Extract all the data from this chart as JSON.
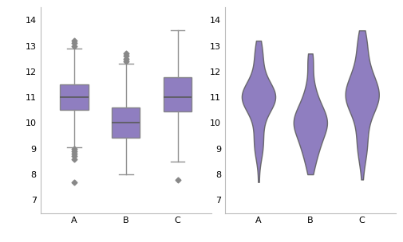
{
  "groups": [
    "A",
    "B",
    "C"
  ],
  "data_A": [
    10.5,
    10.6,
    10.7,
    10.8,
    10.9,
    11.0,
    11.0,
    11.1,
    11.2,
    11.3,
    11.4,
    11.5,
    11.6,
    10.4,
    10.3,
    11.7,
    11.8,
    11.9,
    12.0,
    12.1,
    12.2,
    12.3,
    12.4,
    10.2,
    10.1,
    10.0,
    9.9,
    9.8,
    9.7,
    9.6,
    11.05,
    11.15,
    11.25,
    10.85,
    10.75,
    10.65,
    10.55,
    11.35,
    11.45,
    11.55,
    9.5,
    9.4,
    9.3,
    9.2,
    9.1,
    9.05,
    13.0,
    12.9,
    12.8,
    12.7,
    12.5,
    12.6,
    11.0,
    11.0,
    11.0,
    11.0,
    11.0,
    11.0,
    11.0,
    11.0,
    11.0,
    11.0,
    11.0,
    11.0,
    10.5,
    10.5,
    10.5,
    11.5,
    11.5,
    11.5,
    10.8,
    10.9,
    11.1,
    11.2,
    10.7,
    10.6,
    11.3,
    11.4,
    9.0,
    8.9,
    8.8,
    8.7,
    8.6,
    13.1,
    13.2,
    7.7
  ],
  "data_B": [
    9.7,
    9.8,
    9.9,
    10.0,
    10.1,
    10.2,
    10.3,
    10.4,
    10.5,
    10.6,
    9.6,
    9.5,
    9.4,
    9.3,
    9.2,
    9.1,
    9.0,
    8.9,
    8.8,
    10.7,
    10.8,
    10.9,
    11.0,
    11.1,
    11.2,
    9.85,
    9.95,
    10.05,
    10.15,
    10.25,
    10.35,
    9.75,
    9.65,
    9.55,
    9.45,
    9.35,
    9.25,
    9.15,
    9.05,
    10.45,
    10.55,
    10.65,
    10.75,
    10.85,
    10.95,
    8.0,
    8.1,
    8.2,
    11.3,
    11.4,
    11.5,
    11.6,
    11.7,
    12.3,
    12.4,
    10.0,
    10.0,
    10.0,
    10.0,
    10.0,
    10.0,
    10.0,
    9.5,
    9.5,
    10.5,
    10.5,
    10.5,
    9.0,
    9.0,
    10.0,
    10.1,
    9.9,
    10.2,
    9.8,
    10.3,
    9.7,
    8.5,
    8.4,
    8.3,
    8.6,
    8.7,
    8.8,
    12.5,
    12.6,
    12.7,
    12.2
  ],
  "data_C": [
    10.4,
    10.5,
    10.6,
    10.7,
    10.8,
    10.9,
    11.0,
    11.1,
    11.2,
    11.3,
    11.4,
    11.5,
    11.6,
    11.7,
    11.8,
    10.3,
    10.2,
    10.1,
    10.0,
    9.9,
    9.8,
    9.7,
    12.0,
    12.1,
    12.2,
    10.45,
    10.55,
    10.65,
    10.75,
    10.85,
    10.95,
    11.05,
    11.15,
    11.25,
    11.35,
    11.45,
    11.55,
    11.65,
    11.75,
    11.85,
    9.6,
    9.5,
    9.4,
    9.3,
    12.3,
    12.4,
    12.5,
    13.0,
    13.1,
    13.2,
    13.3,
    13.4,
    13.5,
    13.6,
    11.0,
    11.0,
    11.0,
    11.0,
    11.0,
    11.0,
    11.0,
    10.5,
    10.5,
    11.5,
    11.5,
    11.5,
    12.0,
    11.8,
    11.9,
    10.8,
    10.9,
    11.1,
    11.2,
    9.2,
    9.1,
    9.0,
    8.9,
    8.8,
    8.7,
    8.6,
    8.5,
    7.8,
    12.6,
    12.7,
    12.8,
    12.9
  ],
  "box_color": "#7b68b5",
  "box_edge_color": "#7a7a7a",
  "median_color": "#5a5a5a",
  "whisker_color": "#909090",
  "flier_color": "#888888",
  "violin_color": "#7b68b5",
  "violin_edge_color": "#5a5a5a",
  "ylim": [
    6.5,
    14.5
  ],
  "yticks": [
    7,
    8,
    9,
    10,
    11,
    12,
    13,
    14
  ],
  "bg_color": "#ffffff",
  "figsize": [
    5.06,
    3.04
  ],
  "dpi": 100
}
